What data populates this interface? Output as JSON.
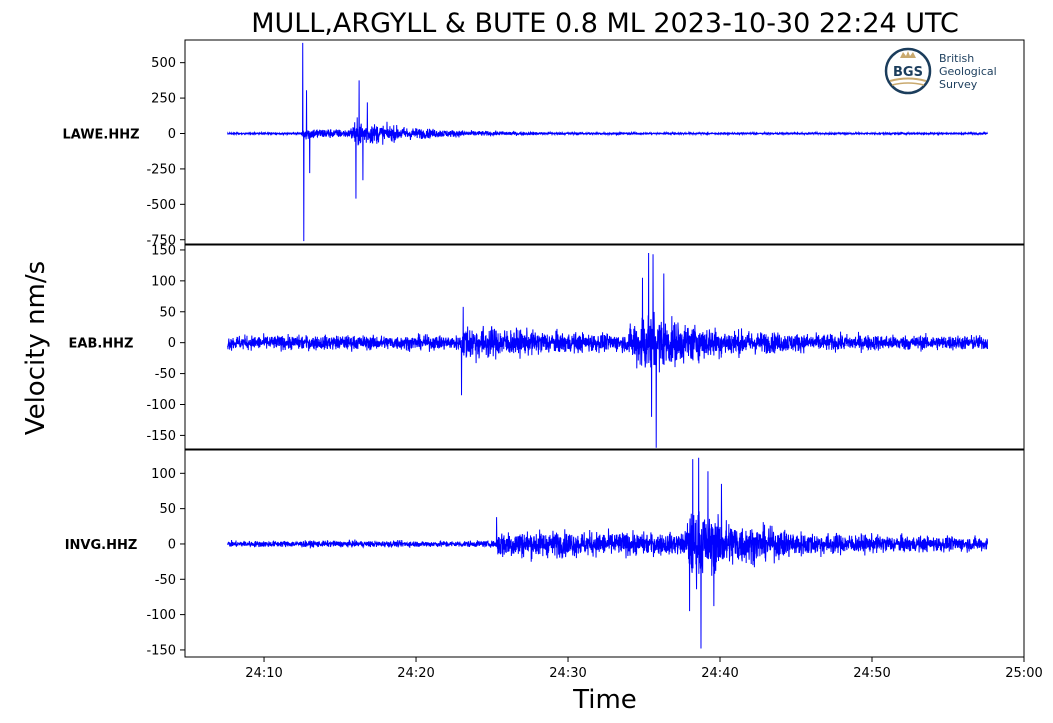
{
  "chart_data": {
    "type": "line",
    "title": "MULL,ARGYLL & BUTE 0.8 ML   2023-10-30 22:24 UTC",
    "xlabel": "Time",
    "ylabel": "Velocity nm/s",
    "line_color": "#0000ff",
    "x_ticks": [
      "24:10",
      "24:20",
      "24:30",
      "24:40",
      "24:50",
      "25:00"
    ],
    "x_tick_values": [
      10,
      20,
      30,
      40,
      50,
      60
    ],
    "x_range": [
      4.8,
      60.0
    ],
    "trace_time_range": [
      7.6,
      57.6
    ],
    "panels": [
      {
        "station": "LAWE.HHZ",
        "ylim": [
          -780,
          660
        ],
        "y_ticks": [
          500,
          250,
          0,
          -250,
          -500,
          -750
        ],
        "y_tick_labels": [
          "500",
          "250",
          "0",
          "-250",
          "-500",
          "-750"
        ],
        "noise_amp": 4,
        "events": [
          {
            "t": 12.4,
            "amp": 28,
            "decay": 5.0,
            "rise": 0.2
          },
          {
            "t": 15.6,
            "amp": 52,
            "decay": 4.0,
            "rise": 0.4
          }
        ],
        "peaks": [
          {
            "t": 12.55,
            "v": 640
          },
          {
            "t": 12.62,
            "v": -760
          },
          {
            "t": 12.8,
            "v": 305
          },
          {
            "t": 13.0,
            "v": -280
          },
          {
            "t": 16.25,
            "v": 375
          },
          {
            "t": 16.05,
            "v": -460
          },
          {
            "t": 16.5,
            "v": -330
          },
          {
            "t": 16.8,
            "v": 220
          }
        ]
      },
      {
        "station": "EAB.HHZ",
        "ylim": [
          -172,
          158
        ],
        "y_ticks": [
          150,
          100,
          50,
          0,
          -50,
          -100,
          -150
        ],
        "y_tick_labels": [
          "150",
          "100",
          "50",
          "0",
          "-50",
          "-100",
          "-150"
        ],
        "noise_amp": 8,
        "events": [
          {
            "t": 22.9,
            "amp": 14,
            "decay": 5.0,
            "rise": 0.3
          },
          {
            "t": 33.8,
            "amp": 36,
            "decay": 4.0,
            "rise": 1.2
          }
        ],
        "peaks": [
          {
            "t": 23.0,
            "v": -85
          },
          {
            "t": 23.1,
            "v": 58
          },
          {
            "t": 35.3,
            "v": 145
          },
          {
            "t": 35.6,
            "v": 143
          },
          {
            "t": 35.8,
            "v": -170
          },
          {
            "t": 35.5,
            "v": -120
          },
          {
            "t": 34.9,
            "v": 105
          },
          {
            "t": 36.3,
            "v": 112
          }
        ]
      },
      {
        "station": "INVG.HHZ",
        "ylim": [
          -160,
          133
        ],
        "y_ticks": [
          100,
          50,
          0,
          -50,
          -100,
          -150
        ],
        "y_tick_labels": [
          "100",
          "50",
          "0",
          "-50",
          "-100",
          "-150"
        ],
        "noise_amp": 3,
        "events": [
          {
            "t": 25.2,
            "amp": 11,
            "decay": 30.0,
            "rise": 0.2
          },
          {
            "t": 37.6,
            "amp": 32,
            "decay": 3.5,
            "rise": 0.6
          }
        ],
        "peaks": [
          {
            "t": 38.6,
            "v": 122
          },
          {
            "t": 38.2,
            "v": 120
          },
          {
            "t": 38.75,
            "v": -148
          },
          {
            "t": 38.0,
            "v": -95
          },
          {
            "t": 39.2,
            "v": 103
          },
          {
            "t": 39.6,
            "v": -88
          },
          {
            "t": 40.1,
            "v": 85
          },
          {
            "t": 25.3,
            "v": 38
          }
        ]
      }
    ]
  },
  "logo": {
    "monogram": "BGS",
    "lines": [
      "British",
      "Geological",
      "Survey"
    ],
    "colors": {
      "ring": "#1b3d5c",
      "crown": "#c9a96e",
      "text": "#1b3d5c"
    }
  }
}
